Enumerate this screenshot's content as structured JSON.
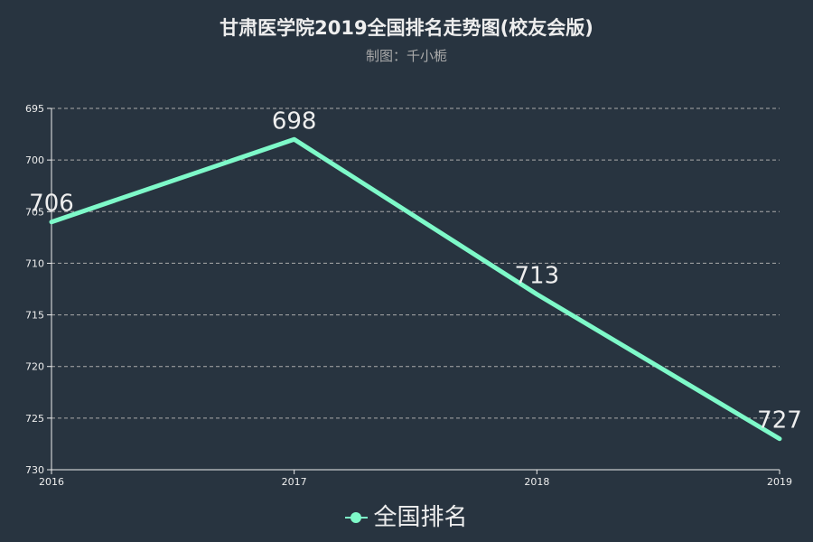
{
  "title": "甘肃医学院2019全国排名走势图(校友会版)",
  "subtitle": "制图：千小栀",
  "colors": {
    "background": "#283440",
    "series": "#7ef9c9",
    "axis": "#eeeeee",
    "grid": "#aaaaaa",
    "text": "#eeeeee",
    "subtext": "#aaaaaa"
  },
  "chart_data": {
    "type": "line",
    "title": "甘肃医学院2019全国排名走势图(校友会版)",
    "subtitle": "制图：千小栀",
    "x": [
      "2016",
      "2017",
      "2018",
      "2019"
    ],
    "series": [
      {
        "name": "全国排名",
        "values": [
          706,
          698,
          713,
          727
        ]
      }
    ],
    "y_ticks": [
      695,
      700,
      705,
      710,
      715,
      720,
      725,
      730
    ],
    "ylim": [
      695,
      730
    ],
    "y_inverse": true,
    "grid": "horizontal-dashed",
    "legend": "bottom-center",
    "data_labels": true
  }
}
